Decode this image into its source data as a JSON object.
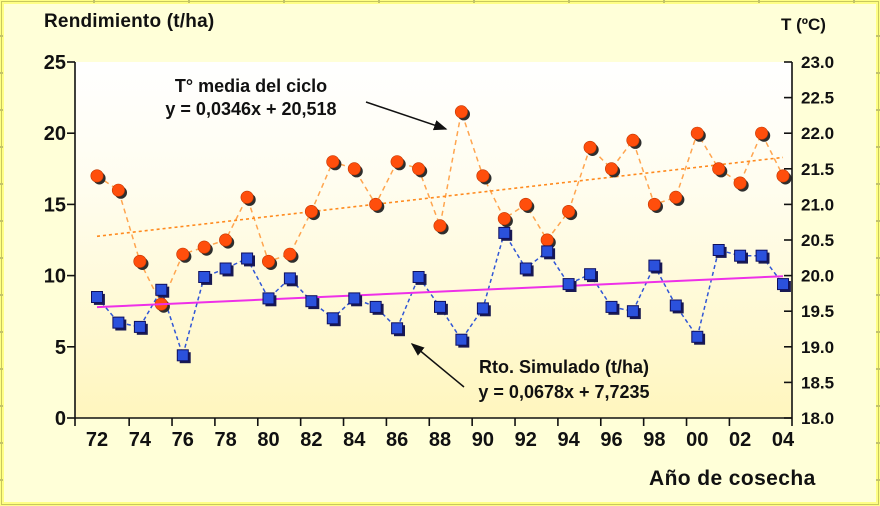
{
  "palette": {
    "page_background": "#FFFFD8",
    "border_yellow": "#FFFF85",
    "border_line": "#C8C85E",
    "plot_gradient_top": "#FFFFFF",
    "plot_gradient_bottom": "#FFF6BE",
    "axis_color": "#111111",
    "temp_marker": "#FF4E0C",
    "temp_line": "#FFA54F",
    "temp_trend": "#FF8A1E",
    "yield_marker": "#2B51DC",
    "yield_line": "#3056D6",
    "yield_trend": "#EE30E8"
  },
  "chart_data": {
    "type": "line",
    "grid": false,
    "legend": "annotations-with-arrows",
    "x": [
      1972,
      1973,
      1974,
      1975,
      1976,
      1977,
      1978,
      1979,
      1980,
      1981,
      1982,
      1983,
      1984,
      1985,
      1986,
      1987,
      1988,
      1989,
      1990,
      1991,
      1992,
      1993,
      1994,
      1995,
      1996,
      1997,
      1998,
      1999,
      2000,
      2001,
      2002,
      2003,
      2004
    ],
    "x_tick_labels": [
      "72",
      "74",
      "76",
      "78",
      "80",
      "82",
      "84",
      "86",
      "88",
      "90",
      "92",
      "94",
      "96",
      "98",
      "00",
      "02",
      "04"
    ],
    "x_axis": {
      "label": "Año de cosecha"
    },
    "left_axis": {
      "label": "Rendimiento (t/ha)",
      "min": 0,
      "max": 25,
      "ticks": [
        0,
        5,
        10,
        15,
        20,
        25
      ]
    },
    "right_axis": {
      "label": "T (ºC)",
      "min": 18,
      "max": 23,
      "ticks": [
        "18.0",
        "18.5",
        "19.0",
        "19.5",
        "20.0",
        "20.5",
        "21.0",
        "21.5",
        "22.0",
        "22.5",
        "23.0"
      ]
    },
    "series": [
      {
        "name": "T° media del ciclo",
        "axis": "right",
        "marker": "circle",
        "marker_color": "#FF4E0C",
        "line_color": "#FFA54F",
        "values": [
          21.4,
          21.2,
          20.2,
          19.6,
          20.3,
          20.4,
          20.5,
          21.1,
          20.2,
          20.3,
          20.9,
          21.6,
          21.5,
          21.0,
          21.6,
          21.5,
          20.7,
          22.3,
          21.4,
          20.8,
          21.0,
          20.5,
          20.9,
          21.8,
          21.5,
          21.9,
          21.0,
          21.1,
          22.0,
          21.5,
          21.3,
          22.0,
          21.4
        ],
        "trendline": {
          "equation": "y = 0,0346x + 20,518",
          "slope": 0.0346,
          "intercept": 20.518,
          "color": "#FF8A1E",
          "style": "dotted"
        }
      },
      {
        "name": "Rto. Simulado (t/ha)",
        "axis": "left",
        "marker": "square",
        "marker_color": "#2B51DC",
        "line_color": "#3056D6",
        "values": [
          8.5,
          6.7,
          6.4,
          9.0,
          4.4,
          9.9,
          10.5,
          11.2,
          8.4,
          9.8,
          8.2,
          7.0,
          8.4,
          7.8,
          6.3,
          9.9,
          7.8,
          5.5,
          7.7,
          13.0,
          10.5,
          11.7,
          9.4,
          10.1,
          7.8,
          7.5,
          10.7,
          7.9,
          5.7,
          11.8,
          11.4,
          11.4,
          9.4
        ],
        "trendline": {
          "equation": "y = 0,0678x + 7,7235",
          "slope": 0.0678,
          "intercept": 7.7235,
          "color": "#EE30E8",
          "style": "solid"
        }
      }
    ]
  }
}
